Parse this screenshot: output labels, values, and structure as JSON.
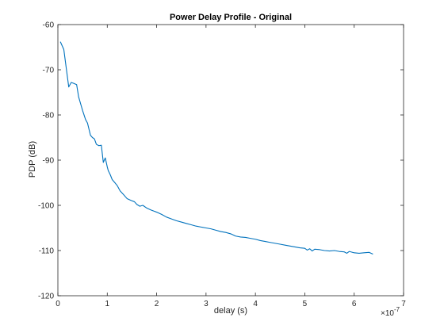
{
  "chart_data": {
    "type": "line",
    "title": "Power Delay Profile - Original",
    "xlabel": "delay (s)",
    "ylabel": "PDP (dB)",
    "x_exponent_label": "×10",
    "x_exponent_power": "-7",
    "xlim": [
      0,
      7
    ],
    "ylim": [
      -120,
      -60
    ],
    "xticks": [
      "0",
      "1",
      "2",
      "3",
      "4",
      "5",
      "6",
      "7"
    ],
    "yticks": [
      "-60",
      "-70",
      "-80",
      "-90",
      "-100",
      "-110",
      "-120"
    ],
    "grid": false,
    "box": true,
    "line_color": "#0072bd",
    "series": [
      {
        "x": [
          0.05,
          0.12,
          0.18,
          0.22,
          0.27,
          0.32,
          0.38,
          0.42,
          0.46,
          0.5,
          0.56,
          0.6,
          0.66,
          0.7,
          0.74,
          0.78,
          0.83,
          0.88,
          0.92,
          0.96,
          1.0,
          1.02,
          1.06,
          1.1,
          1.14,
          1.2,
          1.26,
          1.32,
          1.4,
          1.48,
          1.55,
          1.6,
          1.66,
          1.72,
          1.8,
          1.88,
          1.95,
          2.0,
          2.1,
          2.2,
          2.3,
          2.4,
          2.5,
          2.6,
          2.7,
          2.8,
          2.9,
          3.0,
          3.1,
          3.2,
          3.3,
          3.4,
          3.5,
          3.6,
          3.7,
          3.8,
          3.9,
          4.0,
          4.1,
          4.2,
          4.3,
          4.4,
          4.5,
          4.6,
          4.7,
          4.8,
          4.9,
          5.0,
          5.05,
          5.1,
          5.15,
          5.2,
          5.3,
          5.4,
          5.5,
          5.6,
          5.7,
          5.8,
          5.85,
          5.9,
          6.0,
          6.1,
          6.2,
          6.3,
          6.38
        ],
        "y": [
          -63.8,
          -65.5,
          -70.5,
          -73.8,
          -72.8,
          -73.0,
          -73.3,
          -76.0,
          -77.5,
          -79.0,
          -81.0,
          -81.8,
          -84.5,
          -85.0,
          -85.3,
          -86.5,
          -86.8,
          -86.7,
          -90.5,
          -89.5,
          -91.5,
          -92.3,
          -93.2,
          -94.3,
          -94.8,
          -95.6,
          -96.8,
          -97.5,
          -98.5,
          -98.9,
          -99.2,
          -99.8,
          -100.2,
          -100.0,
          -100.6,
          -101.0,
          -101.3,
          -101.5,
          -102.0,
          -102.6,
          -103.0,
          -103.4,
          -103.7,
          -104.0,
          -104.3,
          -104.6,
          -104.8,
          -105.0,
          -105.2,
          -105.5,
          -105.8,
          -106.0,
          -106.3,
          -106.8,
          -107.0,
          -107.1,
          -107.3,
          -107.5,
          -107.8,
          -108.0,
          -108.2,
          -108.4,
          -108.6,
          -108.8,
          -109.0,
          -109.2,
          -109.4,
          -109.5,
          -109.9,
          -109.6,
          -110.1,
          -109.7,
          -109.8,
          -110.0,
          -110.1,
          -110.0,
          -110.2,
          -110.3,
          -110.6,
          -110.2,
          -110.5,
          -110.6,
          -110.5,
          -110.4,
          -110.8
        ]
      }
    ]
  }
}
